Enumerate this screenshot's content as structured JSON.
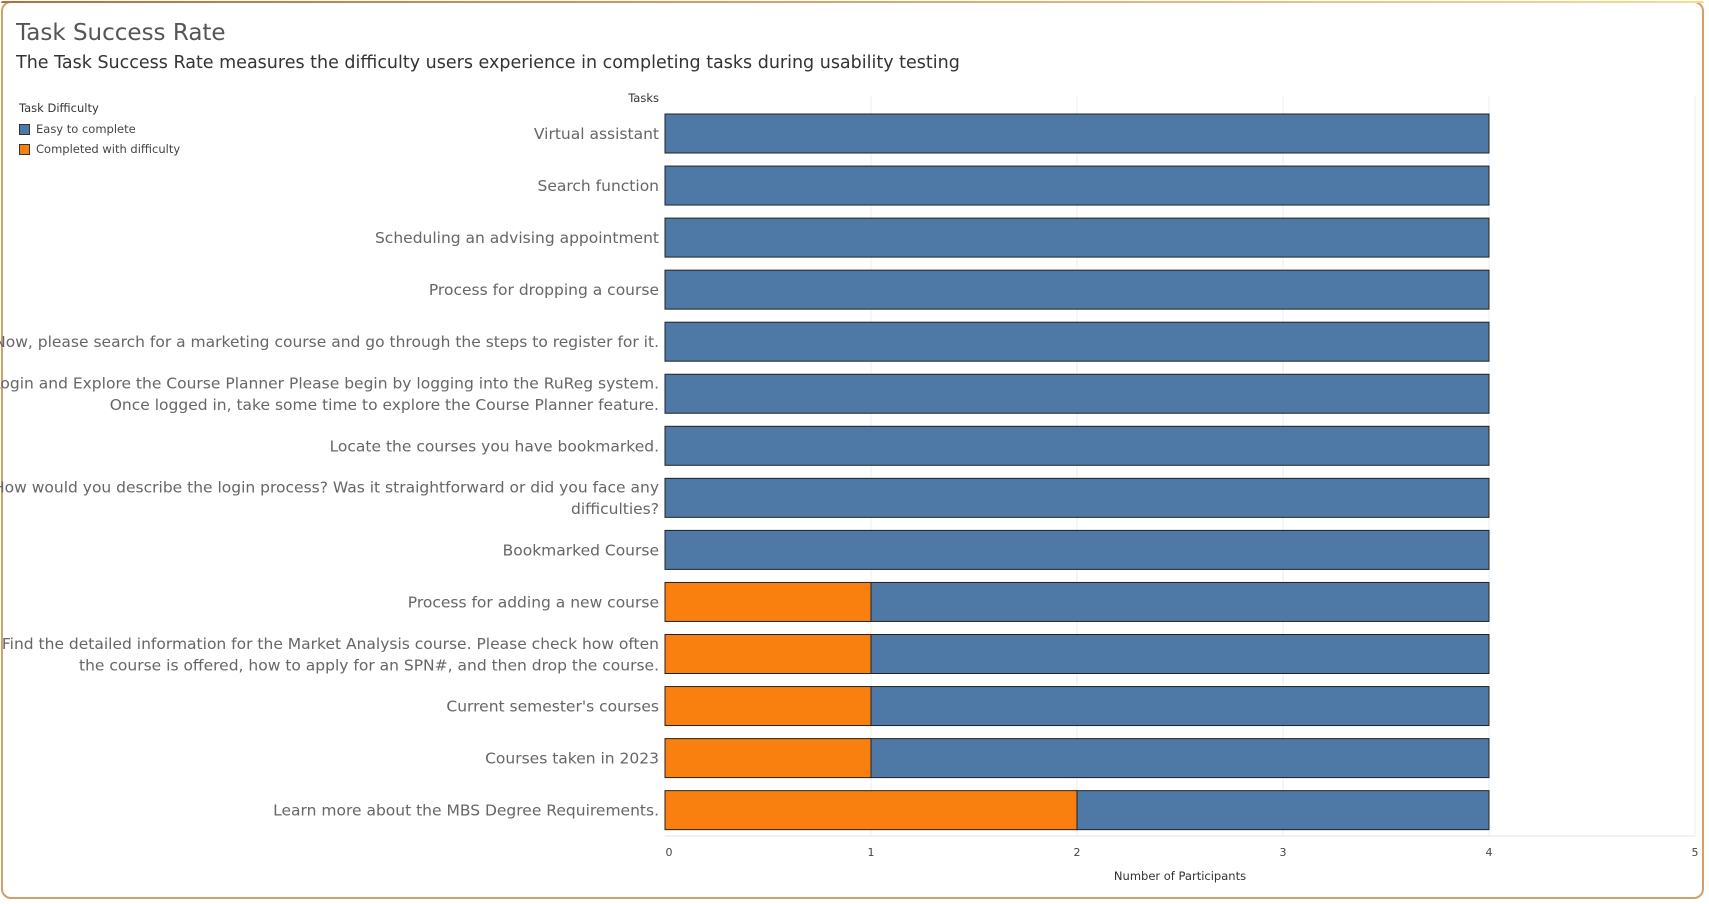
{
  "header": {
    "title": "Task Success Rate",
    "subtitle": "The Task Success Rate measures the difficulty users experience in completing tasks during usability testing"
  },
  "legend": {
    "title": "Task Difficulty",
    "items": [
      {
        "label": "Easy to complete",
        "color": "#4e79a7"
      },
      {
        "label": "Completed with difficulty",
        "color": "#f97f0f"
      }
    ]
  },
  "chart_data": {
    "type": "bar",
    "orientation": "horizontal",
    "stacked": true,
    "title": "Task Success Rate",
    "subtitle": "The Task Success Rate measures the difficulty users experience in completing tasks during usability testing",
    "ylabel": "Tasks",
    "xlabel": "Number of Participants",
    "xlim": [
      0,
      5
    ],
    "xticks": [
      "0",
      "1",
      "2",
      "3",
      "4",
      "5"
    ],
    "grid": true,
    "legend_position": "top-left",
    "categories": [
      [
        "Virtual assistant"
      ],
      [
        "Search function"
      ],
      [
        "Scheduling an advising appointment"
      ],
      [
        "Process for dropping a course"
      ],
      [
        "Now, please search for a marketing course and go through the steps to register for it."
      ],
      [
        "Login and Explore the Course Planner Please begin by logging into the RuReg system.",
        "Once logged in, take some time to explore the Course Planner feature."
      ],
      [
        "Locate the courses you have bookmarked."
      ],
      [
        "How would you describe the login process? Was it straightforward or did you face any",
        "difficulties?"
      ],
      [
        "Bookmarked Course"
      ],
      [
        "Process for adding a new course"
      ],
      [
        "Find the detailed information for the Market Analysis course. Please check how often",
        "the course is offered, how to apply for an SPN#, and then drop the course."
      ],
      [
        "Current semester's courses"
      ],
      [
        "Courses taken in 2023"
      ],
      [
        "Learn more about the MBS Degree Requirements."
      ]
    ],
    "series": [
      {
        "name": "Completed with difficulty",
        "color": "#f97f0f",
        "values": [
          0,
          0,
          0,
          0,
          0,
          0,
          0,
          0,
          0,
          1,
          1,
          1,
          1,
          2
        ]
      },
      {
        "name": "Easy to complete",
        "color": "#4e79a7",
        "values": [
          4,
          4,
          4,
          4,
          4,
          4,
          4,
          4,
          4,
          3,
          3,
          3,
          3,
          2
        ]
      }
    ]
  }
}
